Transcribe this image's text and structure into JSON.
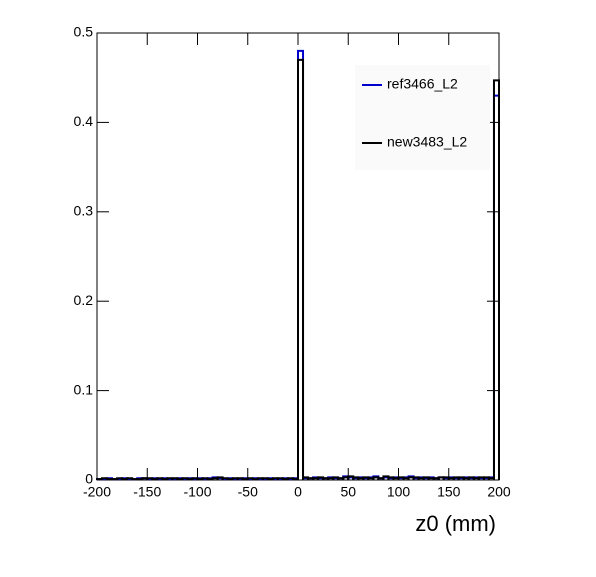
{
  "chart_data": {
    "type": "histogram",
    "x_label": "z0 (mm)",
    "bins": [
      -200,
      -195,
      -190,
      -185,
      -180,
      -175,
      -170,
      -165,
      -160,
      -155,
      -150,
      -145,
      -140,
      -135,
      -130,
      -125,
      -120,
      -115,
      -110,
      -105,
      -100,
      -95,
      -90,
      -85,
      -80,
      -75,
      -70,
      -65,
      -60,
      -55,
      -50,
      -45,
      -40,
      -35,
      -30,
      -25,
      -20,
      -15,
      -10,
      -5,
      0,
      5,
      10,
      15,
      20,
      25,
      30,
      35,
      40,
      45,
      50,
      55,
      60,
      65,
      70,
      75,
      80,
      85,
      90,
      95,
      100,
      105,
      110,
      115,
      120,
      125,
      130,
      135,
      140,
      145,
      150,
      155,
      160,
      165,
      170,
      175,
      180,
      185,
      190,
      195,
      200
    ],
    "series": [
      {
        "name": "ref3466_L2",
        "color": "#0000cc",
        "values": [
          0.001,
          0.001,
          0.002,
          0.001,
          0.001,
          0.002,
          0.001,
          0.001,
          0.002,
          0.002,
          0.001,
          0.002,
          0.001,
          0.002,
          0.001,
          0.001,
          0.002,
          0.001,
          0.002,
          0.001,
          0.002,
          0.001,
          0.002,
          0.003,
          0.002,
          0.001,
          0.002,
          0.001,
          0.001,
          0.002,
          0.001,
          0.002,
          0.001,
          0.001,
          0.002,
          0.001,
          0.001,
          0.002,
          0.001,
          0.002,
          0.48,
          0.002,
          0.002,
          0.003,
          0.002,
          0.002,
          0.003,
          0.002,
          0.002,
          0.004,
          0.003,
          0.002,
          0.003,
          0.002,
          0.003,
          0.004,
          0.002,
          0.003,
          0.002,
          0.003,
          0.002,
          0.003,
          0.004,
          0.002,
          0.003,
          0.002,
          0.003,
          0.002,
          0.003,
          0.002,
          0.003,
          0.002,
          0.002,
          0.003,
          0.002,
          0.003,
          0.002,
          0.002,
          0.003,
          0.43
        ]
      },
      {
        "name": "new3483_L2",
        "color": "#000000",
        "values": [
          0.001,
          0.002,
          0.001,
          0.001,
          0.002,
          0.001,
          0.002,
          0.001,
          0.001,
          0.002,
          0.002,
          0.001,
          0.002,
          0.001,
          0.002,
          0.002,
          0.001,
          0.002,
          0.001,
          0.002,
          0.001,
          0.002,
          0.001,
          0.002,
          0.003,
          0.002,
          0.001,
          0.002,
          0.002,
          0.001,
          0.002,
          0.001,
          0.002,
          0.002,
          0.001,
          0.002,
          0.002,
          0.001,
          0.002,
          0.001,
          0.47,
          0.003,
          0.002,
          0.002,
          0.003,
          0.002,
          0.002,
          0.003,
          0.002,
          0.003,
          0.004,
          0.003,
          0.002,
          0.003,
          0.002,
          0.003,
          0.002,
          0.004,
          0.003,
          0.002,
          0.003,
          0.002,
          0.003,
          0.003,
          0.002,
          0.003,
          0.002,
          0.002,
          0.003,
          0.003,
          0.002,
          0.003,
          0.003,
          0.002,
          0.003,
          0.002,
          0.003,
          0.003,
          0.002,
          0.447
        ]
      }
    ],
    "xlim": [
      -200,
      200
    ],
    "ylim": [
      0,
      0.5
    ],
    "xticks": [
      -200,
      -150,
      -100,
      -50,
      0,
      50,
      100,
      150,
      200
    ],
    "yticks": [
      0,
      0.1,
      0.2,
      0.3,
      0.4,
      0.5
    ],
    "legend": "top-right"
  }
}
